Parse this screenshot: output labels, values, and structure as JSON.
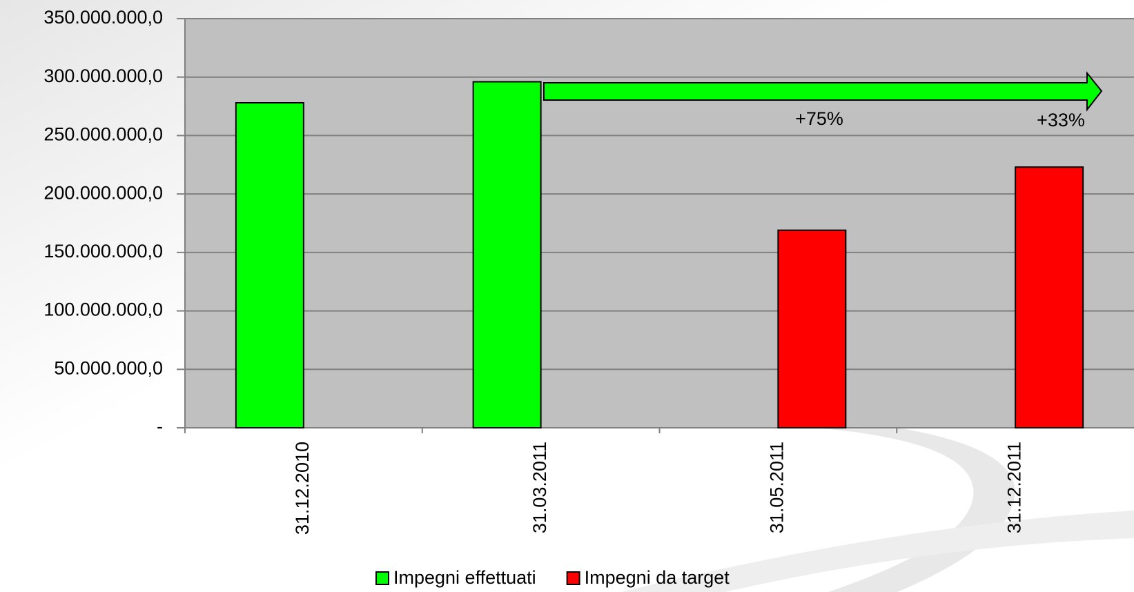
{
  "chart_data": {
    "type": "bar",
    "categories": [
      "31.12.2010",
      "31.03.2011",
      "31.05.2011",
      "31.12.2011"
    ],
    "series": [
      {
        "name": "Impegni effettuati",
        "color": "#00ff00",
        "values": [
          278000000,
          296000000,
          null,
          null
        ]
      },
      {
        "name": "Impegni da target",
        "color": "#ff0000",
        "values": [
          null,
          null,
          169000000,
          223000000
        ]
      }
    ],
    "ylim": [
      0,
      350000000
    ],
    "yticks": [
      {
        "value": 0,
        "label": "-"
      },
      {
        "value": 50000000,
        "label": "50.000.000,0"
      },
      {
        "value": 100000000,
        "label": "100.000.000,0"
      },
      {
        "value": 150000000,
        "label": "150.000.000,0"
      },
      {
        "value": 200000000,
        "label": "200.000.000,0"
      },
      {
        "value": 250000000,
        "label": "250.000.000,0"
      },
      {
        "value": 300000000,
        "label": "300.000.000,0"
      },
      {
        "value": 350000000,
        "label": "350.000.000,0"
      }
    ],
    "grid": true,
    "plot_background": "#c0c0c0",
    "annotations": [
      "+75%",
      "+33%"
    ]
  }
}
